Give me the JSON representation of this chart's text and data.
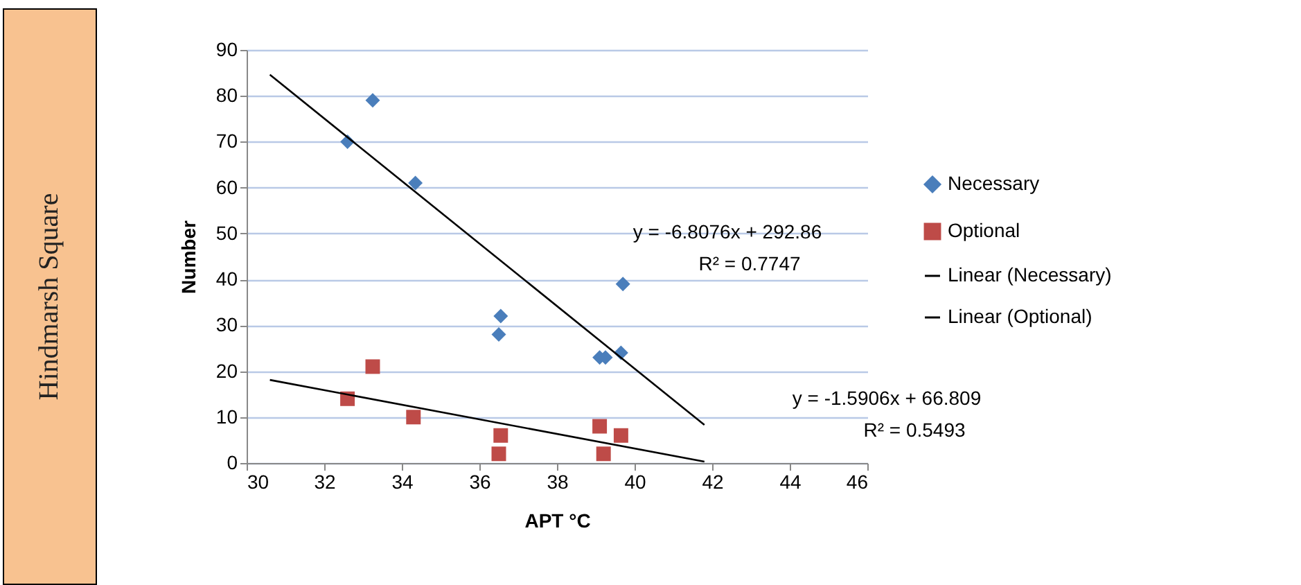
{
  "chart_data": {
    "type": "scatter",
    "xlabel": "APT °C",
    "ylabel": "Number",
    "xlim": [
      30,
      46
    ],
    "xticks": [
      30,
      32,
      34,
      36,
      38,
      40,
      42,
      44,
      46
    ],
    "ylim": [
      0,
      90
    ],
    "yticks": [
      0,
      10,
      20,
      30,
      40,
      50,
      60,
      70,
      80,
      90
    ],
    "grid": "y",
    "legend": "right",
    "series": [
      {
        "name": "Necessary",
        "type": "scatter",
        "marker": "diamond",
        "color": "#4a7ebb",
        "x": [
          32.6,
          33.25,
          34.35,
          36.5,
          36.55,
          39.1,
          39.25,
          39.65,
          39.7
        ],
        "values": [
          70,
          79,
          61,
          28,
          32,
          23,
          23,
          24,
          39
        ]
      },
      {
        "name": "Optional",
        "type": "scatter",
        "marker": "square",
        "color": "#be4b48",
        "x": [
          32.6,
          33.25,
          34.3,
          36.55,
          36.5,
          39.1,
          39.2,
          39.65
        ],
        "values": [
          14,
          21,
          10,
          6,
          2,
          8,
          2,
          6
        ]
      },
      {
        "name": "Linear (Necessary)",
        "type": "line",
        "color": "#000000",
        "x": [
          30.6,
          41.8
        ],
        "values": [
          84.6,
          8.3
        ]
      },
      {
        "name": "Linear (Optional)",
        "type": "line",
        "color": "#000000",
        "x": [
          30.6,
          41.8
        ],
        "values": [
          18.1,
          0.3
        ]
      }
    ],
    "annotations": [
      "y = -6.8076x + 292.86",
      "R² = 0.7747",
      "y = -1.5906x + 66.809",
      "R² = 0.5493",
      "Hindmarsh Square"
    ]
  }
}
